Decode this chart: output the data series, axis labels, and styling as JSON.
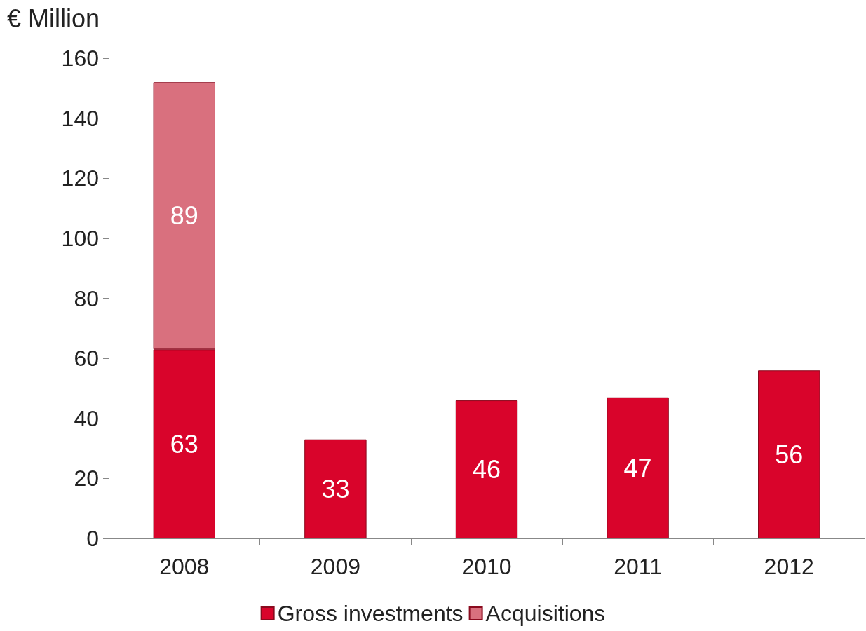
{
  "chart_data": {
    "type": "bar",
    "ylabel": "€ Million",
    "categories": [
      "2008",
      "2009",
      "2010",
      "2011",
      "2012"
    ],
    "series": [
      {
        "name": "Gross investments",
        "color": "#d9042b",
        "values": [
          63,
          33,
          46,
          47,
          56
        ]
      },
      {
        "name": "Acquisitions",
        "color": "#d9707e",
        "values": [
          89,
          null,
          null,
          null,
          null
        ]
      }
    ],
    "stacked": true,
    "data_labels": true,
    "ylim": [
      0,
      160
    ],
    "yticks": [
      0,
      20,
      40,
      60,
      80,
      100,
      120,
      140,
      160
    ],
    "grid": false,
    "legend": "bottom"
  }
}
